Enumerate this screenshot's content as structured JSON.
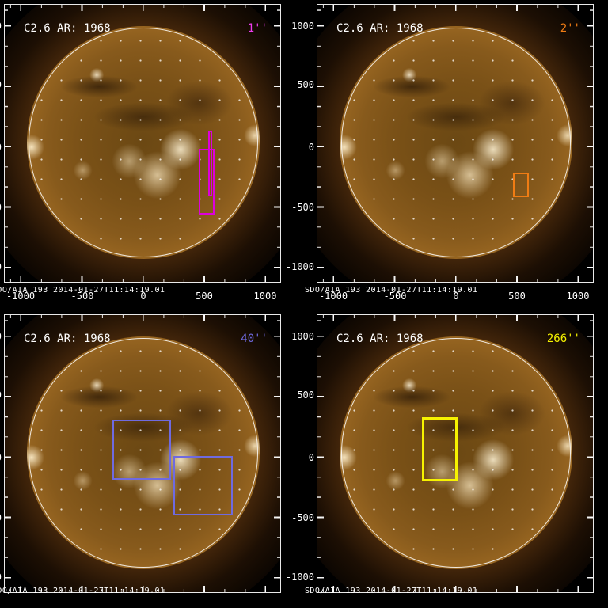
{
  "figure": {
    "background_color": "#000000",
    "frame_color": "#ffffff",
    "observation_label": "SDO/AIA 193  2014-01-27T11:14:19.01"
  },
  "axis": {
    "x_tick_labels": [
      "-1000",
      "-500",
      "0",
      "500",
      "1000"
    ],
    "y_tick_labels": [
      "1000",
      "500",
      "0",
      "-500",
      "-1000"
    ]
  },
  "panels": [
    {
      "position": "top-left",
      "title": "C2.6 AR: 1968",
      "slit_label": "1''",
      "slit_color": "#ee3cee",
      "fov_box_color": "#dd00dd",
      "fov_box_count": 2
    },
    {
      "position": "top-right",
      "title": "C2.6 AR: 1968",
      "slit_label": "2''",
      "slit_color": "#f07c14",
      "fov_box_color": "#f07c14",
      "fov_box_count": 1
    },
    {
      "position": "bottom-left",
      "title": "C2.6 AR: 1968",
      "slit_label": "40''",
      "slit_color": "#6f6ae0",
      "fov_box_color": "#6f6ae0",
      "fov_box_count": 2
    },
    {
      "position": "bottom-right",
      "title": "C2.6 AR: 1968",
      "slit_label": "266''",
      "slit_color": "#f6f200",
      "fov_box_color": "#f6f200",
      "fov_box_count": 1
    }
  ],
  "chart_data": {
    "type": "heatmap",
    "description": "2x2 grid of SDO/AIA 193 full-disk solar EUV images; each panel shows the same C2.6 flare active region AR 1968 map with colored field-of-view rectangles for four spectrograph slit widths",
    "shared": {
      "title_per_panel": "C2.6 AR: 1968",
      "caption_per_panel": "SDO/AIA 193  2014-01-27T11:14:19.01",
      "units": "arcsec",
      "xlim": [
        -1140,
        1110
      ],
      "ylim": [
        -1120,
        1180
      ],
      "x_ticks": [
        -1000,
        -500,
        0,
        500,
        1000
      ],
      "y_ticks": [
        1000,
        500,
        0,
        -500,
        -1000
      ],
      "grid": "dotted heliographic grid over solar disk, white limb circle",
      "solar_limb_radius_arcsec": 960,
      "legend_position": "slit width label at top-right of each panel"
    },
    "panels": [
      {
        "slit_label": "1''",
        "color": "#dd00dd",
        "fov_boxes_arcsec": [
          {
            "x": [
              450,
              575
            ],
            "y": [
              -550,
              -15
            ]
          },
          {
            "x": [
              525,
              555
            ],
            "y": [
              -400,
              135
            ]
          }
        ]
      },
      {
        "slit_label": "2''",
        "color": "#f07c14",
        "fov_boxes_arcsec": [
          {
            "x": [
              465,
              590
            ],
            "y": [
              -410,
              -215
            ]
          }
        ]
      },
      {
        "slit_label": "40''",
        "color": "#6f6ae0",
        "fov_boxes_arcsec": [
          {
            "x": [
              -255,
              220
            ],
            "y": [
              -215,
              275
            ]
          },
          {
            "x": [
              245,
              725
            ],
            "y": [
              -510,
              -25
            ]
          }
        ]
      },
      {
        "slit_label": "266''",
        "color": "#f6f200",
        "fov_boxes_arcsec": [
          {
            "x": [
              -280,
              5
            ],
            "y": [
              -230,
              295
            ]
          }
        ]
      }
    ]
  }
}
